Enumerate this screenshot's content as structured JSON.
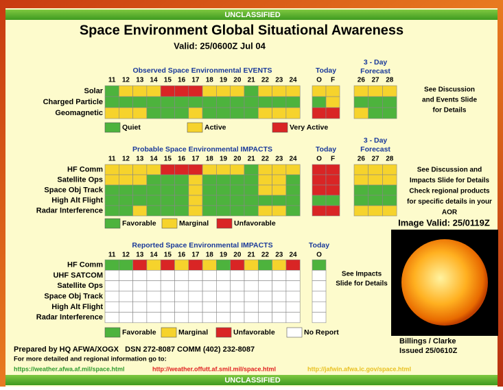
{
  "banner_top": "UNCLASSIFIED",
  "banner_bottom": "UNCLASSIFIED",
  "title": "Space Environment Global Situational Awareness",
  "valid": "Valid: 25/0600Z Jul 04",
  "panels": [
    {
      "title": "Observed Space Environmental EVENTS",
      "days": [
        "11",
        "12",
        "13",
        "14",
        "15",
        "16",
        "17",
        "18",
        "19",
        "20",
        "21",
        "22",
        "23",
        "24"
      ],
      "today_label": "Today",
      "today_columns": [
        "O",
        "F"
      ],
      "forecast_label": [
        "3 - Day",
        "Forecast"
      ],
      "forecast_days": [
        "26",
        "27",
        "28"
      ],
      "rows": [
        {
          "label": "Solar",
          "days": [
            "#4db33d",
            "#f6d32c",
            "#f6d32c",
            "#f6d32c",
            "#d92525",
            "#d92525",
            "#d92525",
            "#f6d32c",
            "#f6d32c",
            "#f6d32c",
            "#4db33d",
            "#f6d32c",
            "#f6d32c",
            "#f6d32c"
          ],
          "today": [
            "#f6d32c",
            "#f6d32c"
          ],
          "forecast": [
            "#f6d32c",
            "#f6d32c",
            "#f6d32c"
          ]
        },
        {
          "label": "Charged Particle",
          "days": [
            "#4db33d",
            "#4db33d",
            "#4db33d",
            "#4db33d",
            "#4db33d",
            "#4db33d",
            "#4db33d",
            "#4db33d",
            "#4db33d",
            "#4db33d",
            "#4db33d",
            "#4db33d",
            "#4db33d",
            "#4db33d"
          ],
          "today": [
            "#4db33d",
            "#f6d32c"
          ],
          "forecast": [
            "#4db33d",
            "#4db33d",
            "#4db33d"
          ]
        },
        {
          "label": "Geomagnetic",
          "days": [
            "#f6d32c",
            "#f6d32c",
            "#f6d32c",
            "#4db33d",
            "#4db33d",
            "#4db33d",
            "#f6d32c",
            "#4db33d",
            "#4db33d",
            "#4db33d",
            "#4db33d",
            "#f6d32c",
            "#f6d32c",
            "#f6d32c"
          ],
          "today": [
            "#d92525",
            "#d92525"
          ],
          "forecast": [
            "#f6d32c",
            "#4db33d",
            "#4db33d"
          ]
        }
      ],
      "legend": [
        {
          "label": "Quiet",
          "color": "#4db33d"
        },
        {
          "label": "Active",
          "color": "#f6d32c"
        },
        {
          "label": "Very Active",
          "color": "#d92525"
        }
      ],
      "note": [
        "See Discussion",
        "and Events Slide",
        "for Details"
      ]
    },
    {
      "title": "Probable Space Environmental IMPACTS",
      "days": [
        "11",
        "12",
        "13",
        "14",
        "15",
        "16",
        "17",
        "18",
        "19",
        "20",
        "21",
        "22",
        "23",
        "24"
      ],
      "today_label": "Today",
      "today_columns": [
        "O",
        "F"
      ],
      "forecast_label": [
        "3 - Day",
        "Forecast"
      ],
      "forecast_days": [
        "26",
        "27",
        "28"
      ],
      "rows": [
        {
          "label": "HF Comm",
          "days": [
            "#f6d32c",
            "#f6d32c",
            "#f6d32c",
            "#f6d32c",
            "#d92525",
            "#d92525",
            "#d92525",
            "#f6d32c",
            "#f6d32c",
            "#f6d32c",
            "#4db33d",
            "#f6d32c",
            "#f6d32c",
            "#f6d32c"
          ],
          "today": [
            "#d92525",
            "#d92525"
          ],
          "forecast": [
            "#f6d32c",
            "#f6d32c",
            "#f6d32c"
          ]
        },
        {
          "label": "Satellite Ops",
          "days": [
            "#f6d32c",
            "#f6d32c",
            "#f6d32c",
            "#4db33d",
            "#4db33d",
            "#4db33d",
            "#f6d32c",
            "#4db33d",
            "#4db33d",
            "#4db33d",
            "#4db33d",
            "#f6d32c",
            "#f6d32c",
            "#4db33d"
          ],
          "today": [
            "#d92525",
            "#d92525"
          ],
          "forecast": [
            "#f6d32c",
            "#f6d32c",
            "#f6d32c"
          ]
        },
        {
          "label": "Space Obj Track",
          "days": [
            "#4db33d",
            "#4db33d",
            "#4db33d",
            "#4db33d",
            "#4db33d",
            "#4db33d",
            "#f6d32c",
            "#4db33d",
            "#4db33d",
            "#4db33d",
            "#4db33d",
            "#f6d32c",
            "#f6d32c",
            "#4db33d"
          ],
          "today": [
            "#d92525",
            "#d92525"
          ],
          "forecast": [
            "#4db33d",
            "#4db33d",
            "#4db33d"
          ]
        },
        {
          "label": "High Alt Flight",
          "days": [
            "#4db33d",
            "#4db33d",
            "#4db33d",
            "#4db33d",
            "#4db33d",
            "#4db33d",
            "#f6d32c",
            "#4db33d",
            "#4db33d",
            "#4db33d",
            "#4db33d",
            "#4db33d",
            "#4db33d",
            "#4db33d"
          ],
          "today": [
            "#4db33d",
            "#4db33d"
          ],
          "forecast": [
            "#4db33d",
            "#4db33d",
            "#4db33d"
          ]
        },
        {
          "label": "Radar Interference",
          "days": [
            "#4db33d",
            "#4db33d",
            "#f6d32c",
            "#4db33d",
            "#4db33d",
            "#4db33d",
            "#f6d32c",
            "#4db33d",
            "#4db33d",
            "#4db33d",
            "#4db33d",
            "#f6d32c",
            "#f6d32c",
            "#4db33d"
          ],
          "today": [
            "#d92525",
            "#d92525"
          ],
          "forecast": [
            "#f6d32c",
            "#f6d32c",
            "#f6d32c"
          ]
        }
      ],
      "legend": [
        {
          "label": "Favorable",
          "color": "#4db33d"
        },
        {
          "label": "Marginal",
          "color": "#f6d32c"
        },
        {
          "label": "Unfavorable",
          "color": "#d92525"
        }
      ],
      "note": [
        "See Discussion and",
        "Impacts Slide for Details",
        "Check regional products",
        "for specific details in your",
        "AOR"
      ]
    },
    {
      "title": "Reported Space Environmental IMPACTS",
      "days": [
        "11",
        "12",
        "13",
        "14",
        "15",
        "16",
        "17",
        "18",
        "19",
        "20",
        "21",
        "22",
        "23",
        "24"
      ],
      "today_label": "Today",
      "today_columns": [
        "O"
      ],
      "rows": [
        {
          "label": "HF Comm",
          "days": [
            "#4db33d",
            "#4db33d",
            "#d92525",
            "#f6d32c",
            "#d92525",
            "#f6d32c",
            "#d92525",
            "#f6d32c",
            "#4db33d",
            "#d92525",
            "#f6d32c",
            "#4db33d",
            "#f6d32c",
            "#d92525"
          ],
          "today": [
            "#4db33d"
          ]
        },
        {
          "label": "UHF SATCOM",
          "days": [
            "#ffffff",
            "#ffffff",
            "#ffffff",
            "#ffffff",
            "#ffffff",
            "#ffffff",
            "#ffffff",
            "#ffffff",
            "#ffffff",
            "#ffffff",
            "#ffffff",
            "#ffffff",
            "#ffffff",
            "#ffffff"
          ],
          "today": [
            "#ffffff"
          ]
        },
        {
          "label": "Satellite Ops",
          "days": [
            "#ffffff",
            "#ffffff",
            "#ffffff",
            "#ffffff",
            "#ffffff",
            "#ffffff",
            "#ffffff",
            "#ffffff",
            "#ffffff",
            "#ffffff",
            "#ffffff",
            "#ffffff",
            "#ffffff",
            "#ffffff"
          ],
          "today": [
            "#ffffff"
          ]
        },
        {
          "label": "Space Obj Track",
          "days": [
            "#ffffff",
            "#ffffff",
            "#ffffff",
            "#ffffff",
            "#ffffff",
            "#ffffff",
            "#ffffff",
            "#ffffff",
            "#ffffff",
            "#ffffff",
            "#ffffff",
            "#ffffff",
            "#ffffff",
            "#ffffff"
          ],
          "today": [
            "#ffffff"
          ]
        },
        {
          "label": "High Alt Flight",
          "days": [
            "#ffffff",
            "#ffffff",
            "#ffffff",
            "#ffffff",
            "#ffffff",
            "#ffffff",
            "#ffffff",
            "#ffffff",
            "#ffffff",
            "#ffffff",
            "#ffffff",
            "#ffffff",
            "#ffffff",
            "#ffffff"
          ],
          "today": [
            "#ffffff"
          ]
        },
        {
          "label": "Radar Interference",
          "days": [
            "#ffffff",
            "#ffffff",
            "#ffffff",
            "#ffffff",
            "#ffffff",
            "#ffffff",
            "#ffffff",
            "#ffffff",
            "#ffffff",
            "#ffffff",
            "#ffffff",
            "#ffffff",
            "#ffffff",
            "#ffffff"
          ],
          "today": [
            "#ffffff"
          ]
        }
      ],
      "legend": [
        {
          "label": "Favorable",
          "color": "#4db33d"
        },
        {
          "label": "Marginal",
          "color": "#f6d32c"
        },
        {
          "label": "Unfavorable",
          "color": "#d92525"
        },
        {
          "label": "No Report",
          "color": "#ffffff"
        }
      ],
      "note": [
        "See Impacts",
        "Slide for Details"
      ]
    }
  ],
  "image_valid": "Image Valid: 25/0119Z",
  "image_credit": [
    "Billings / Clarke",
    "Issued 25/0610Z"
  ],
  "footer": {
    "prepared": "Prepared by HQ AFWA/XOGX   DSN 272-8087 COMM (402) 232-8087",
    "more_info": "For more detailed and regional information go to:",
    "links": [
      {
        "text": "https://weather.afwa.af.mil/space.html",
        "color": "#2e9a2e"
      },
      {
        "text": "http://weather.offutt.af.smil.mil/space.html",
        "color": "#e02020"
      },
      {
        "text": "http://jafwin.afwa.ic.gov/space.html",
        "color": "#e8c020"
      }
    ]
  }
}
